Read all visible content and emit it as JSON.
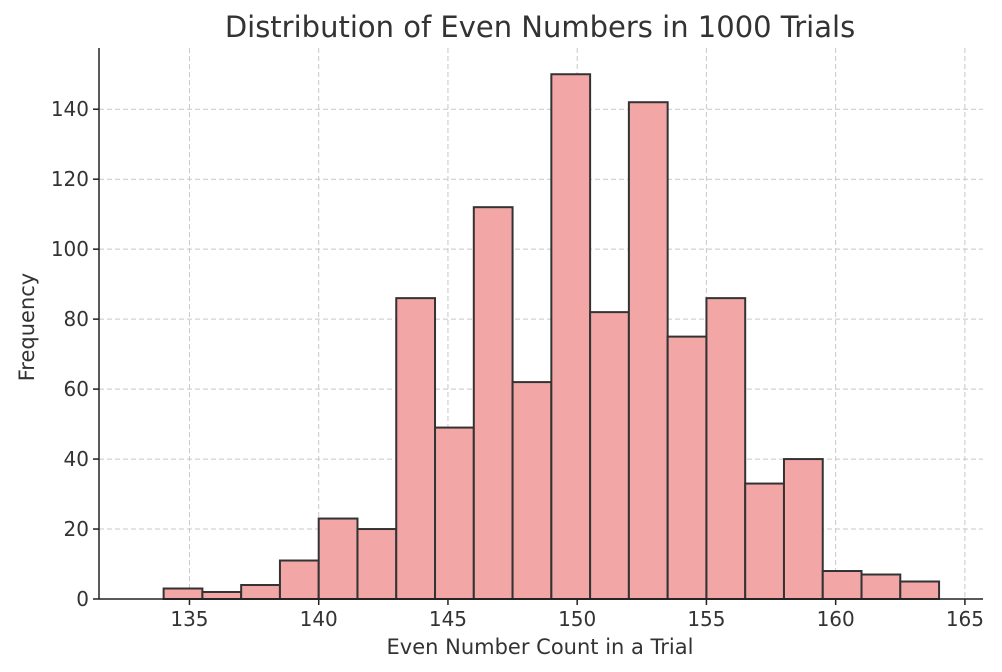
{
  "chart_data": {
    "type": "bar",
    "title": "Distribution of Even Numbers in 1000 Trials",
    "xlabel": "Even Number Count in a Trial",
    "ylabel": "Frequency",
    "xlim": [
      131.5,
      165.7
    ],
    "ylim": [
      0,
      157.5
    ],
    "xticks": [
      135,
      140,
      145,
      150,
      155,
      160,
      165
    ],
    "yticks": [
      0,
      20,
      40,
      60,
      80,
      100,
      120,
      140
    ],
    "grid": true,
    "bar_color": "#f2a6a6",
    "edge_color": "#333333",
    "bins": [
      {
        "start": 134.0,
        "end": 135.5,
        "count": 3
      },
      {
        "start": 135.5,
        "end": 137.0,
        "count": 2
      },
      {
        "start": 137.0,
        "end": 138.5,
        "count": 4
      },
      {
        "start": 138.5,
        "end": 140.0,
        "count": 11
      },
      {
        "start": 140.0,
        "end": 141.5,
        "count": 23
      },
      {
        "start": 141.5,
        "end": 143.0,
        "count": 20
      },
      {
        "start": 143.0,
        "end": 144.5,
        "count": 86
      },
      {
        "start": 144.5,
        "end": 146.0,
        "count": 49
      },
      {
        "start": 146.0,
        "end": 147.5,
        "count": 112
      },
      {
        "start": 147.5,
        "end": 149.0,
        "count": 62
      },
      {
        "start": 149.0,
        "end": 150.5,
        "count": 150
      },
      {
        "start": 150.5,
        "end": 152.0,
        "count": 82
      },
      {
        "start": 152.0,
        "end": 153.5,
        "count": 142
      },
      {
        "start": 153.5,
        "end": 155.0,
        "count": 75
      },
      {
        "start": 155.0,
        "end": 156.5,
        "count": 86
      },
      {
        "start": 156.5,
        "end": 158.0,
        "count": 33
      },
      {
        "start": 158.0,
        "end": 159.5,
        "count": 40
      },
      {
        "start": 159.5,
        "end": 161.0,
        "count": 8
      },
      {
        "start": 161.0,
        "end": 162.5,
        "count": 7
      },
      {
        "start": 162.5,
        "end": 164.0,
        "count": 5
      }
    ]
  }
}
